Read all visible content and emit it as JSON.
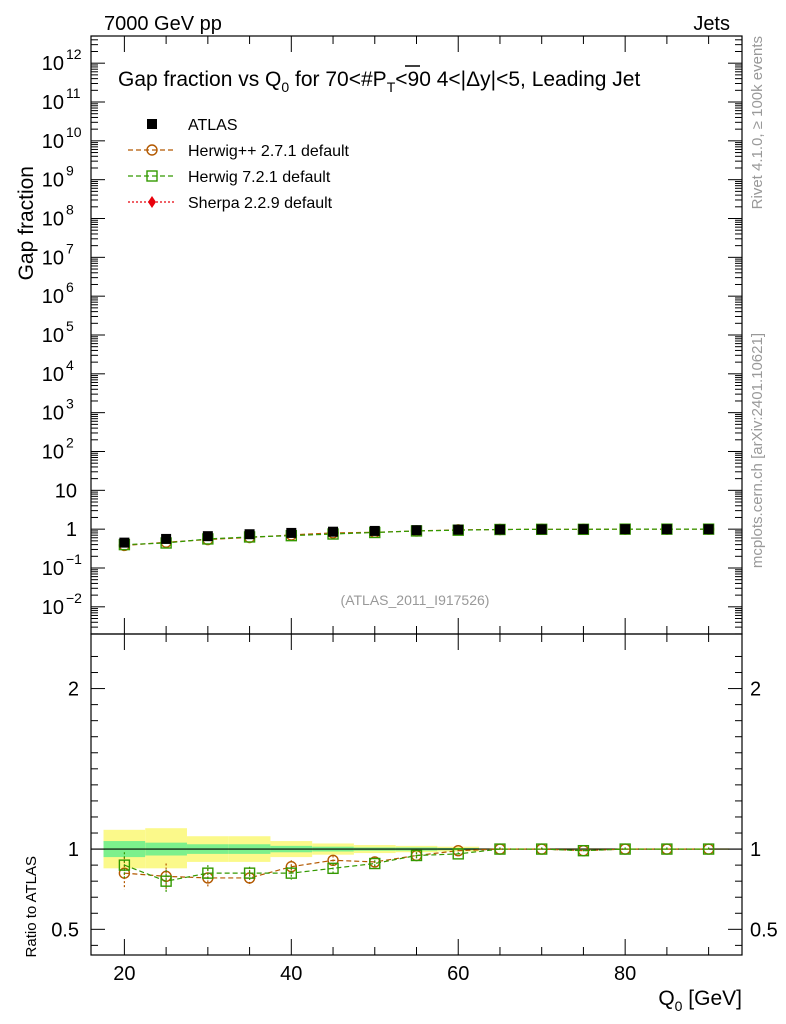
{
  "header": {
    "left": "7000 GeV pp",
    "right": "Jets"
  },
  "side": {
    "top": "Rivet 4.1.0, ≥ 100k events",
    "bottom": "mcplots.cern.ch [arXiv:2401.10621]"
  },
  "chart_data": {
    "type": "scatter",
    "title": "Gap fraction vs Q",
    "title_sub": "0",
    "title_rest": " for 70<#P",
    "title_t": "T",
    "title_end": "<90  4<|Δy|<5, Leading Jet",
    "analysis_id": "(ATLAS_2011_I917526)",
    "ylabel_main": "Gap fraction",
    "ylabel_ratio": "Ratio to ATLAS",
    "xlabel": "Q",
    "xlabel_sub": "0",
    "xlabel_unit": " [GeV]",
    "x": [
      20,
      25,
      30,
      35,
      40,
      45,
      50,
      55,
      60,
      65,
      70,
      75,
      80,
      85,
      90
    ],
    "xlim": [
      16,
      94
    ],
    "ylim_main_log10": [
      -2.7,
      12.7
    ],
    "ylim_ratio": [
      0.34,
      2.34
    ],
    "x_ticks": [
      "20",
      "40",
      "60",
      "80"
    ],
    "y_main_ticks": [
      "10",
      "10",
      "1",
      "10",
      "10",
      "10",
      "10",
      "10",
      "10",
      "10",
      "10",
      "10",
      "10",
      "10",
      "10"
    ],
    "y_main_exponents": [
      "−2",
      "−1",
      "",
      "",
      "2",
      "3",
      "4",
      "5",
      "6",
      "7",
      "8",
      "9",
      "10",
      "11",
      "12"
    ],
    "y_ratio_ticks": [
      "0.5",
      "1",
      "2"
    ],
    "legend": [
      {
        "name": "ATLAS",
        "color": "#000000",
        "marker": "square-filled"
      },
      {
        "name": "Herwig++ 2.7.1 default",
        "color": "#b35900",
        "marker": "circle-open"
      },
      {
        "name": "Herwig 7.2.1 default",
        "color": "#339900",
        "marker": "square-open"
      },
      {
        "name": "Sherpa 2.2.9 default",
        "color": "#e8000b",
        "marker": "diamond-filled"
      }
    ],
    "series": [
      {
        "name": "ATLAS",
        "values": [
          0.45,
          0.56,
          0.66,
          0.74,
          0.8,
          0.86,
          0.9,
          0.94,
          0.97,
          0.98,
          0.99,
          1.0,
          1.0,
          1.0,
          1.0
        ]
      },
      {
        "name": "Herwig++ 2.7.1 default",
        "values": [
          0.38,
          0.46,
          0.54,
          0.61,
          0.71,
          0.8,
          0.83,
          0.9,
          0.96,
          0.98,
          0.99,
          0.99,
          1.0,
          1.0,
          1.0
        ]
      },
      {
        "name": "Herwig 7.2.1 default",
        "values": [
          0.4,
          0.44,
          0.56,
          0.63,
          0.68,
          0.75,
          0.82,
          0.9,
          0.94,
          0.98,
          0.99,
          0.99,
          1.0,
          1.0,
          1.0
        ]
      }
    ],
    "ratio_series": [
      {
        "name": "Herwig++ 2.7.1 default",
        "values": [
          0.85,
          0.83,
          0.82,
          0.82,
          0.89,
          0.93,
          0.92,
          0.96,
          0.99,
          1.0,
          1.0,
          0.99,
          1.0,
          1.0,
          1.0
        ],
        "errors": [
          0.1,
          0.08,
          0.06,
          0.05,
          0.04,
          0.03,
          0.03,
          0.02,
          0.01,
          0.01,
          0.01,
          0.01,
          0.01,
          0.01,
          0.01
        ]
      },
      {
        "name": "Herwig 7.2.1 default",
        "values": [
          0.9,
          0.8,
          0.85,
          0.85,
          0.85,
          0.88,
          0.91,
          0.96,
          0.97,
          1.0,
          1.0,
          0.99,
          1.0,
          1.0,
          1.0
        ],
        "errors": [
          0.08,
          0.07,
          0.05,
          0.04,
          0.04,
          0.03,
          0.02,
          0.02,
          0.01,
          0.01,
          0.01,
          0.01,
          0.01,
          0.01,
          0.01
        ]
      }
    ],
    "uncertainty_bands": [
      {
        "x0": 17.5,
        "x1": 22.5,
        "inner": [
          0.95,
          1.05
        ],
        "outer": [
          0.88,
          1.12
        ]
      },
      {
        "x0": 22.5,
        "x1": 27.5,
        "inner": [
          0.96,
          1.04
        ],
        "outer": [
          0.88,
          1.13
        ]
      },
      {
        "x0": 27.5,
        "x1": 32.5,
        "inner": [
          0.97,
          1.03
        ],
        "outer": [
          0.92,
          1.08
        ]
      },
      {
        "x0": 32.5,
        "x1": 37.5,
        "inner": [
          0.97,
          1.03
        ],
        "outer": [
          0.92,
          1.08
        ]
      },
      {
        "x0": 37.5,
        "x1": 42.5,
        "inner": [
          0.98,
          1.02
        ],
        "outer": [
          0.95,
          1.05
        ]
      },
      {
        "x0": 42.5,
        "x1": 47.5,
        "inner": [
          0.985,
          1.015
        ],
        "outer": [
          0.965,
          1.035
        ]
      },
      {
        "x0": 47.5,
        "x1": 52.5,
        "inner": [
          0.99,
          1.01
        ],
        "outer": [
          0.975,
          1.025
        ]
      },
      {
        "x0": 52.5,
        "x1": 57.5,
        "inner": [
          0.99,
          1.01
        ],
        "outer": [
          0.98,
          1.02
        ]
      },
      {
        "x0": 57.5,
        "x1": 62.5,
        "inner": [
          0.993,
          1.007
        ],
        "outer": [
          0.985,
          1.015
        ]
      },
      {
        "x0": 62.5,
        "x1": 92.5,
        "inner": [
          0.997,
          1.003
        ],
        "outer": [
          0.995,
          1.005
        ]
      }
    ],
    "band_colors": {
      "inner": "#7cf08c",
      "outer": "#fbf98a"
    }
  }
}
